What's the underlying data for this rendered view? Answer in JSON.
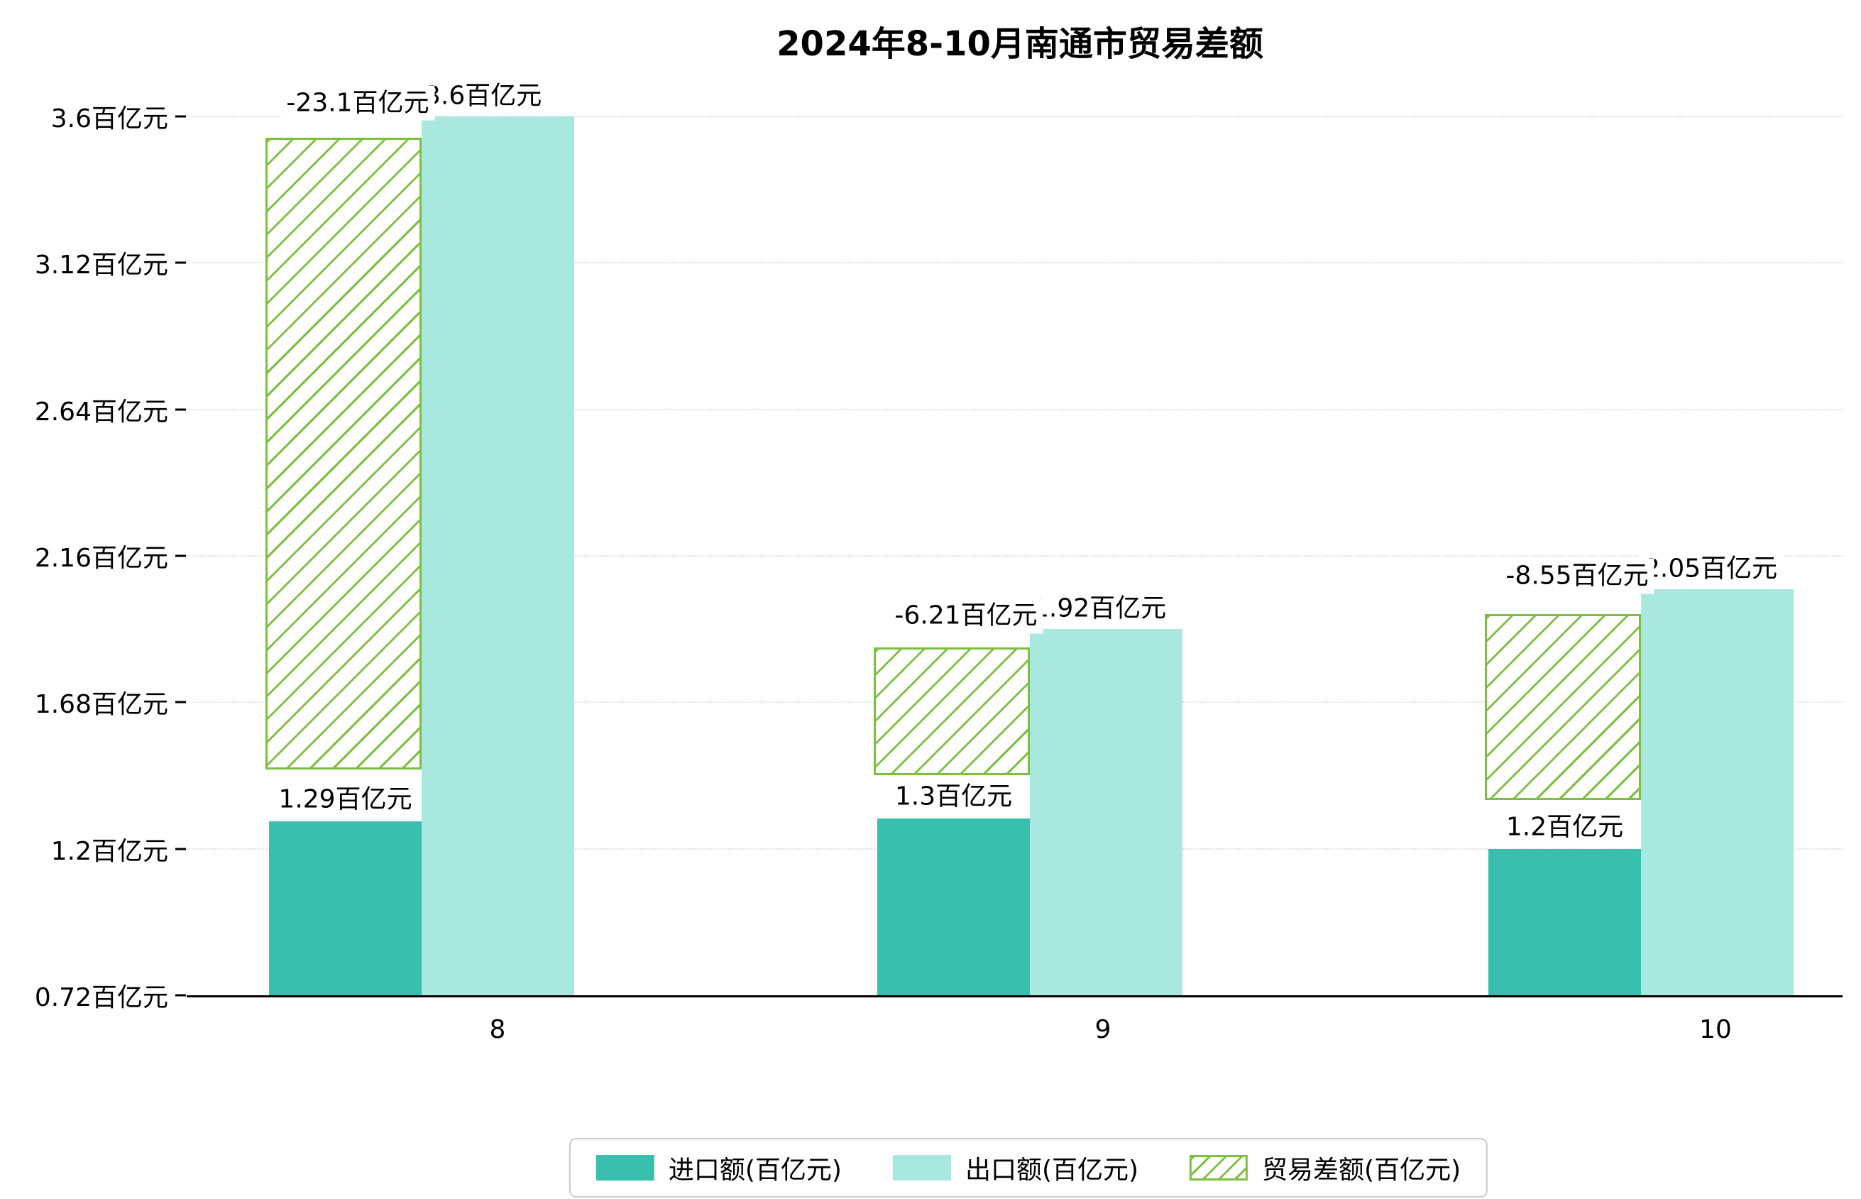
{
  "chart_data": {
    "type": "bar",
    "title": "2024年8-10月南通市贸易差额",
    "categories": [
      "8",
      "9",
      "10"
    ],
    "series": [
      {
        "name": "进口额(百亿元)",
        "role": "import",
        "color": "#38bfad",
        "values": [
          1.29,
          1.3,
          1.2
        ],
        "labels": [
          "1.29百亿元",
          "1.3百亿元",
          "1.2百亿元"
        ]
      },
      {
        "name": "出口额(百亿元)",
        "role": "export",
        "color": "#a9e8de",
        "values": [
          3.6,
          1.92,
          2.05
        ],
        "labels": [
          "3.6百亿元",
          "1.92百亿元",
          "2.05百亿元"
        ]
      },
      {
        "name": "贸易差额(百亿元)",
        "role": "balance",
        "hatch": "/",
        "edge_color": "#7dbf3f",
        "values": [
          -23.1,
          -6.21,
          -8.55
        ],
        "labels": [
          "-23.1百亿元",
          "-6.21百亿元",
          "-8.55百亿元"
        ],
        "bar_spans": [
          [
            1.46,
            3.53
          ],
          [
            1.44,
            1.86
          ],
          [
            1.36,
            1.97
          ]
        ]
      }
    ],
    "y_ticks": [
      {
        "value": 0.72,
        "label": "0.72百亿元"
      },
      {
        "value": 1.2,
        "label": "1.2百亿元"
      },
      {
        "value": 1.68,
        "label": "1.68百亿元"
      },
      {
        "value": 2.16,
        "label": "2.16百亿元"
      },
      {
        "value": 2.64,
        "label": "2.64百亿元"
      },
      {
        "value": 3.12,
        "label": "3.12百亿元"
      },
      {
        "value": 3.6,
        "label": "3.6百亿元"
      }
    ],
    "ylim": [
      0.72,
      3.6
    ],
    "grid": {
      "axis": "y",
      "style": "dotted"
    },
    "legend": {
      "position": "bottom-center"
    }
  },
  "colors": {
    "import": "#38bfad",
    "export": "#a9e8de",
    "balance_edge": "#7dbf3f",
    "grid": "#e0e0e0",
    "axis": "#000000",
    "background": "#ffffff"
  }
}
